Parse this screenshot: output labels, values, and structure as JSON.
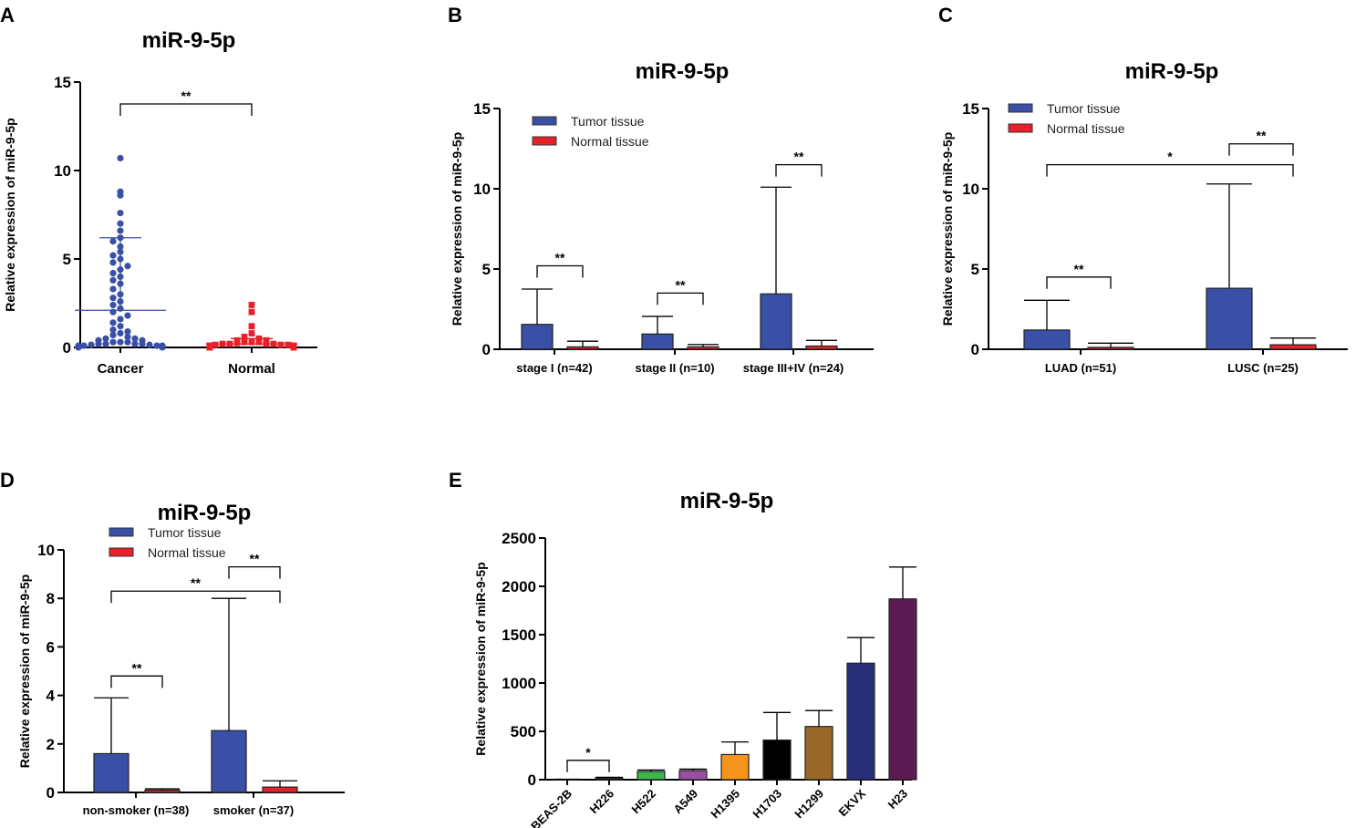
{
  "chart_data": [
    {
      "panel": "A",
      "type": "scatter",
      "title": "miR-9-5p",
      "ylabel": "Relative expression of miR-9-5p",
      "ylim": [
        0,
        15
      ],
      "yticks": [
        0,
        5,
        10,
        15
      ],
      "categories": [
        "Cancer",
        "Normal"
      ],
      "colors": [
        "#3a50a6",
        "#e8202a"
      ],
      "means": [
        2.1,
        0.2
      ],
      "sd_upper": [
        6.2,
        0.5
      ],
      "points": [
        [
          10.7,
          8.8,
          8.6,
          7.6,
          7.0,
          6.6,
          6.2,
          6.0,
          5.7,
          5.4,
          5.2,
          5.0,
          4.8,
          4.6,
          4.4,
          4.2,
          4.0,
          3.8,
          3.6,
          3.3,
          3.0,
          2.8,
          2.6,
          2.4,
          2.2,
          2.0,
          1.8,
          1.6,
          1.4,
          1.2,
          1.0,
          0.9,
          0.8,
          0.7,
          0.6,
          0.5,
          0.5,
          0.4,
          0.4,
          0.3,
          0.3,
          0.3,
          0.2,
          0.2,
          0.2,
          0.2,
          0.15,
          0.15,
          0.1,
          0.1,
          0.1,
          0.1,
          0.08,
          0.08,
          0.05,
          0.05,
          0.05,
          0.05,
          0.03,
          0.03,
          0.03,
          0.02,
          0.02,
          0.02,
          0.01,
          0.01,
          0.01,
          0.01,
          0.01,
          0.01,
          0.01
        ],
        [
          2.4,
          2.0,
          1.2,
          0.8,
          0.6,
          0.5,
          0.4,
          0.4,
          0.3,
          0.3,
          0.3,
          0.25,
          0.2,
          0.2,
          0.2,
          0.2,
          0.15,
          0.15,
          0.15,
          0.1,
          0.1,
          0.1,
          0.1,
          0.1,
          0.08,
          0.08,
          0.08,
          0.06,
          0.06,
          0.06,
          0.05,
          0.05,
          0.05,
          0.05,
          0.04,
          0.04,
          0.04,
          0.03,
          0.03,
          0.03,
          0.03,
          0.02,
          0.02,
          0.02,
          0.02,
          0.02,
          0.01,
          0.01,
          0.01,
          0.01,
          0.01,
          0.01,
          0.01,
          0.01
        ]
      ],
      "annotations": [
        {
          "from": 0,
          "to": 1,
          "label": "**"
        }
      ]
    },
    {
      "panel": "B",
      "type": "bar",
      "title": "miR-9-5p",
      "ylabel": "Relative expression of miR-9-5p",
      "ylim": [
        0,
        15
      ],
      "yticks": [
        0,
        5,
        10,
        15
      ],
      "categories": [
        "stage I (n=42)",
        "stage II (n=10)",
        "stage III+IV (n=24)"
      ],
      "series": [
        {
          "name": "Tumor tissue",
          "color": "#3a50a6",
          "values": [
            1.55,
            0.95,
            3.45
          ],
          "errors": [
            3.75,
            2.05,
            10.1
          ]
        },
        {
          "name": "Normal tissue",
          "color": "#e8202a",
          "values": [
            0.15,
            0.15,
            0.2
          ],
          "errors": [
            0.5,
            0.3,
            0.55
          ]
        }
      ],
      "annotations": [
        {
          "group": 0,
          "label": "**",
          "y": 5.2
        },
        {
          "group": 1,
          "label": "**",
          "y": 3.5
        },
        {
          "group": 2,
          "label": "**",
          "y": 11.5
        }
      ]
    },
    {
      "panel": "C",
      "type": "bar",
      "title": "miR-9-5p",
      "ylabel": "Relative expression of miR-9-5p",
      "ylim": [
        0,
        15
      ],
      "yticks": [
        0,
        5,
        10,
        15
      ],
      "categories": [
        "LUAD (n=51)",
        "LUSC (n=25)"
      ],
      "series": [
        {
          "name": "Tumor tissue",
          "color": "#3a50a6",
          "values": [
            1.2,
            3.8
          ],
          "errors": [
            3.05,
            10.3
          ]
        },
        {
          "name": "Normal tissue",
          "color": "#e8202a",
          "values": [
            0.12,
            0.28
          ],
          "errors": [
            0.38,
            0.7
          ]
        }
      ],
      "annotations": [
        {
          "group": 0,
          "label": "**",
          "y": 4.5
        },
        {
          "group": 1,
          "label": "**",
          "y": 12.8
        },
        {
          "between": [
            0,
            1
          ],
          "label": "*",
          "y": 11.5
        }
      ]
    },
    {
      "panel": "D",
      "type": "bar",
      "title": "miR-9-5p",
      "ylabel": "Relative expression of miR-9-5p",
      "ylim": [
        0,
        10
      ],
      "yticks": [
        0,
        2,
        4,
        6,
        8,
        10
      ],
      "categories": [
        "non-smoker (n=38)",
        "smoker (n=37)"
      ],
      "series": [
        {
          "name": "Tumor tissue",
          "color": "#3a50a6",
          "values": [
            1.6,
            2.55
          ],
          "errors": [
            3.9,
            8.0
          ]
        },
        {
          "name": "Normal tissue",
          "color": "#e8202a",
          "values": [
            0.1,
            0.22
          ],
          "errors": [
            0.15,
            0.48
          ]
        }
      ],
      "annotations": [
        {
          "group": 0,
          "label": "**",
          "y": 4.8
        },
        {
          "group": 1,
          "label": "**",
          "y": 9.3
        },
        {
          "between": [
            0,
            1
          ],
          "label": "**",
          "y": 8.3
        }
      ]
    },
    {
      "panel": "E",
      "type": "bar",
      "title": "miR-9-5p",
      "ylabel": "Relative expression of miR-9-5p",
      "ylim": [
        0,
        2500
      ],
      "yticks": [
        0,
        500,
        1000,
        1500,
        2000,
        2500
      ],
      "categories": [
        "BEAS-2B",
        "H226",
        "H522",
        "A549",
        "H1395",
        "H1703",
        "H1299",
        "EKVX",
        "H23"
      ],
      "series": [
        {
          "name": "miR-9-5p",
          "values": [
            2,
            15,
            85,
            95,
            260,
            410,
            550,
            1205,
            1870
          ],
          "errors": [
            5,
            25,
            100,
            110,
            390,
            695,
            715,
            1470,
            2200
          ],
          "colors": [
            "#ffffff",
            "#1f1f1f",
            "#3db54a",
            "#9b4fa2",
            "#f7941d",
            "#000000",
            "#98692b",
            "#272f78",
            "#5c1a52"
          ]
        }
      ],
      "annotations": [
        {
          "from": 0,
          "to": 1,
          "label": "*",
          "y": 200
        }
      ]
    }
  ],
  "labels": {
    "panel_letters": [
      "A",
      "B",
      "C",
      "D",
      "E"
    ]
  }
}
